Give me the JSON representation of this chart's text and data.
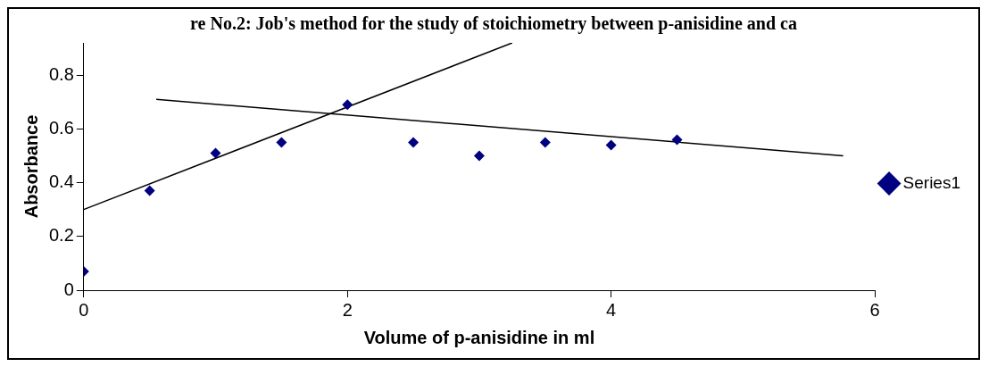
{
  "chart_data": {
    "type": "scatter",
    "title": "re No.2: Job's method for the study of stoichiometry between p-anisidine and ca",
    "xlabel": "Volume of p-anisidine in ml",
    "ylabel": "Absorbance",
    "series": [
      {
        "name": "Series1",
        "color": "#000080",
        "x": [
          0,
          0.5,
          1,
          1.5,
          2,
          2.5,
          3,
          3.5,
          4,
          4.5
        ],
        "values": [
          0.07,
          0.37,
          0.51,
          0.55,
          0.69,
          0.55,
          0.5,
          0.55,
          0.54,
          0.56
        ]
      },
      {
        "type": "line",
        "color": "#000000",
        "x": [
          0,
          3.25
        ],
        "values": [
          0.3,
          0.92
        ],
        "marker": "none"
      },
      {
        "type": "line",
        "color": "#000000",
        "x": [
          0.55,
          5.76
        ],
        "values": [
          0.71,
          0.5
        ],
        "marker": "none"
      }
    ],
    "xlim": [
      0,
      6
    ],
    "xticks": [
      0,
      2,
      4,
      6
    ],
    "ylim": [
      0,
      0.92
    ],
    "yticks": [
      0,
      0.2,
      0.4,
      0.6,
      0.8
    ],
    "grid": false,
    "legend": "right",
    "marker": "diamond"
  }
}
